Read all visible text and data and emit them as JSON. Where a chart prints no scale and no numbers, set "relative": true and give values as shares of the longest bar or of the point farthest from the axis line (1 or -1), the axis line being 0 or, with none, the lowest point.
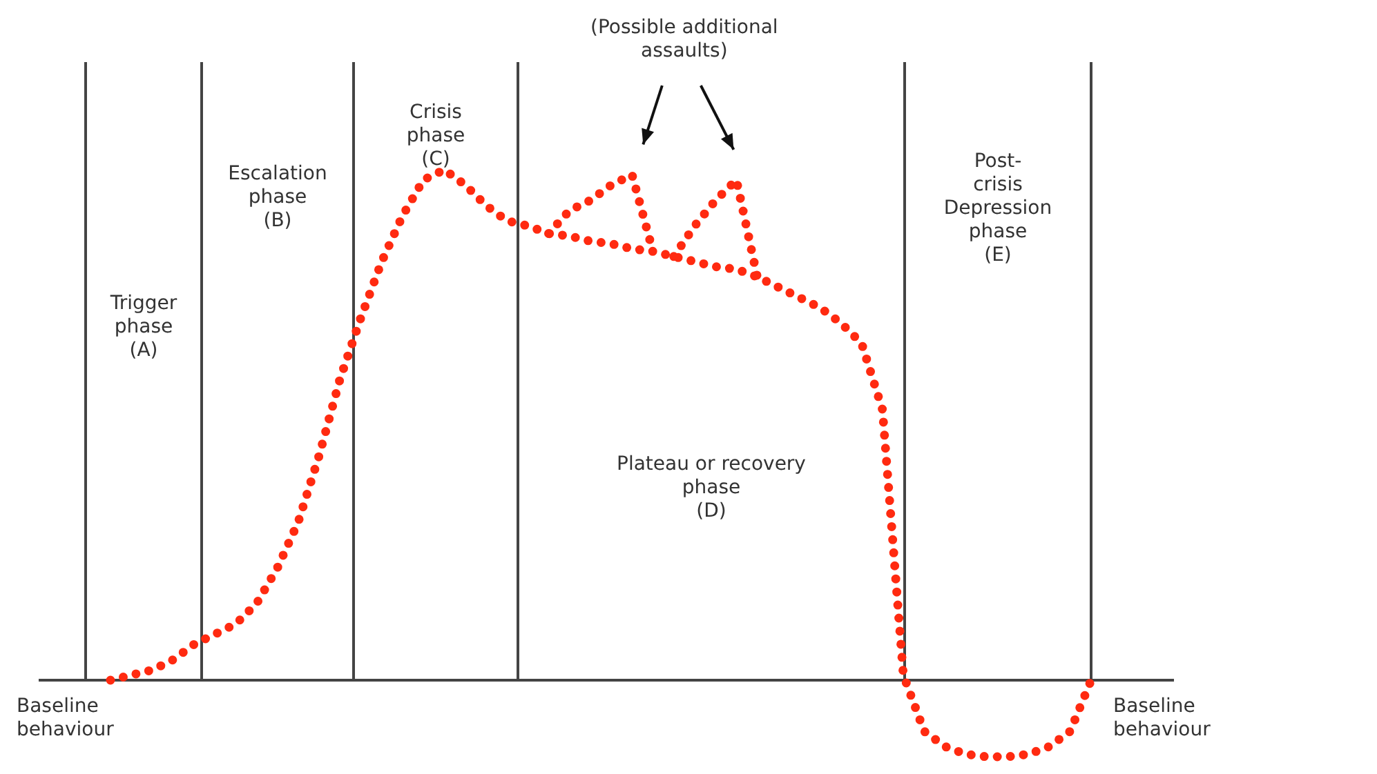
{
  "chart_data": {
    "type": "line",
    "relative": true,
    "line_style": "dotted",
    "categories": [
      null,
      null,
      null,
      null,
      null,
      null,
      null,
      null,
      null,
      null,
      null,
      null,
      null,
      null,
      null,
      null,
      null,
      null,
      null,
      null,
      null,
      null,
      null,
      null,
      null,
      null,
      null,
      null,
      null,
      null,
      null,
      null,
      null,
      null,
      null,
      null,
      null,
      null,
      null,
      null,
      null,
      null,
      null,
      null,
      null,
      null,
      null,
      null
    ],
    "annotations": [
      "(Possible additional assaults)",
      "Baseline behaviour",
      "Baseline behaviour",
      "Trigger\nphase\n(A)",
      "Escalation\nphase\n(B)",
      "Crisis\nphase\n(C)",
      "Plateau or recovery\nphase\n(D)",
      "Post-\ncrisis\nDepression\nphase\n(E)"
    ],
    "series": [
      {
        "color": "#ff2a10",
        "values": [
          0,
          0.01,
          0.02,
          0.04,
          0.07,
          0.09,
          0.11,
          0.15,
          0.22,
          0.31,
          0.44,
          0.59,
          0.71,
          0.82,
          0.91,
          0.98,
          1,
          0.97,
          0.93,
          0.9,
          0.89,
          0.875,
          0.87,
          0.86,
          0.855,
          0.845,
          0.84,
          0.83,
          0.82,
          0.81,
          0.805,
          0.79,
          0.77,
          0.75,
          0.73,
          0.7,
          0.66,
          0.53,
          0.01,
          -0.1,
          -0.13,
          -0.145,
          -0.15,
          -0.15,
          -0.145,
          -0.13,
          -0.1,
          0
        ]
      },
      {
        "color": "#ff2a10",
        "values": [
          null,
          null,
          null,
          null,
          null,
          null,
          null,
          null,
          null,
          null,
          null,
          null,
          null,
          null,
          null,
          null,
          null,
          null,
          null,
          null,
          null,
          0.875,
          0.92,
          0.94,
          0.97,
          0.99,
          0.84,
          null,
          null,
          null,
          null,
          null,
          null,
          null,
          null,
          null,
          null,
          null,
          null,
          null,
          null,
          null,
          null,
          null,
          null,
          null,
          null,
          null
        ]
      },
      {
        "color": "#ff2a10",
        "values": [
          null,
          null,
          null,
          null,
          null,
          null,
          null,
          null,
          null,
          null,
          null,
          null,
          null,
          null,
          null,
          null,
          null,
          null,
          null,
          null,
          null,
          null,
          null,
          null,
          null,
          null,
          null,
          0.83,
          0.89,
          0.94,
          0.98,
          0.79,
          null,
          null,
          null,
          null,
          null,
          null,
          null,
          null,
          null,
          null,
          null,
          null,
          null,
          null,
          null,
          null
        ]
      }
    ]
  }
}
